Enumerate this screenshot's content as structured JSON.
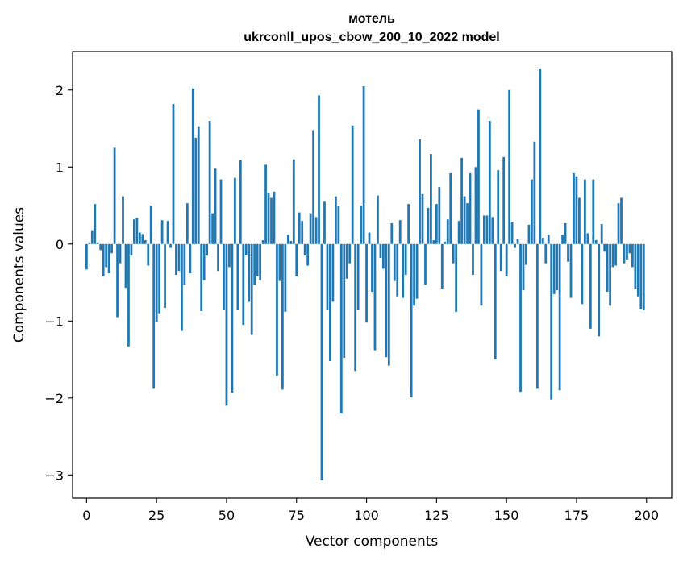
{
  "chart_data": {
    "type": "bar",
    "title": "мотель",
    "subtitle": "ukrconll_upos_cbow_200_10_2022 model",
    "xlabel": "Vector components",
    "ylabel": "Components values",
    "xlim": [
      -5,
      209
    ],
    "ylim": [
      -3.3,
      2.5
    ],
    "xticks": [
      0,
      25,
      50,
      75,
      100,
      125,
      150,
      175,
      200
    ],
    "xtick_labels": [
      "0",
      "25",
      "50",
      "75",
      "100",
      "125",
      "150",
      "175",
      "200"
    ],
    "yticks": [
      -3,
      -2,
      -1,
      0,
      1,
      2
    ],
    "ytick_labels": [
      "−3",
      "−2",
      "−1",
      "0",
      "1",
      "2"
    ],
    "grid": false,
    "color": "#1f77b4",
    "x": [
      0,
      1,
      2,
      3,
      4,
      5,
      6,
      7,
      8,
      9,
      10,
      11,
      12,
      13,
      14,
      15,
      16,
      17,
      18,
      19,
      20,
      21,
      22,
      23,
      24,
      25,
      26,
      27,
      28,
      29,
      30,
      31,
      32,
      33,
      34,
      35,
      36,
      37,
      38,
      39,
      40,
      41,
      42,
      43,
      44,
      45,
      46,
      47,
      48,
      49,
      50,
      51,
      52,
      53,
      54,
      55,
      56,
      57,
      58,
      59,
      60,
      61,
      62,
      63,
      64,
      65,
      66,
      67,
      68,
      69,
      70,
      71,
      72,
      73,
      74,
      75,
      76,
      77,
      78,
      79,
      80,
      81,
      82,
      83,
      84,
      85,
      86,
      87,
      88,
      89,
      90,
      91,
      92,
      93,
      94,
      95,
      96,
      97,
      98,
      99,
      100,
      101,
      102,
      103,
      104,
      105,
      106,
      107,
      108,
      109,
      110,
      111,
      112,
      113,
      114,
      115,
      116,
      117,
      118,
      119,
      120,
      121,
      122,
      123,
      124,
      125,
      126,
      127,
      128,
      129,
      130,
      131,
      132,
      133,
      134,
      135,
      136,
      137,
      138,
      139,
      140,
      141,
      142,
      143,
      144,
      145,
      146,
      147,
      148,
      149,
      150,
      151,
      152,
      153,
      154,
      155,
      156,
      157,
      158,
      159,
      160,
      161,
      162,
      163,
      164,
      165,
      166,
      167,
      168,
      169,
      170,
      171,
      172,
      173,
      174,
      175,
      176,
      177,
      178,
      179,
      180,
      181,
      182,
      183,
      184,
      185,
      186,
      187,
      188,
      189,
      190,
      191,
      192,
      193,
      194,
      195,
      196,
      197,
      198,
      199
    ],
    "values": [
      -0.33,
      0.02,
      0.18,
      0.52,
      0.02,
      -0.08,
      -0.42,
      -0.3,
      -0.38,
      -0.12,
      1.25,
      -0.95,
      -0.25,
      0.62,
      -0.57,
      -1.33,
      -0.15,
      0.32,
      0.34,
      0.15,
      0.13,
      0.05,
      -0.28,
      0.5,
      -1.88,
      -1.01,
      -0.9,
      0.31,
      -0.83,
      0.3,
      -0.05,
      1.82,
      -0.4,
      -0.35,
      -1.13,
      -0.53,
      0.53,
      -0.38,
      2.02,
      1.38,
      1.53,
      -0.87,
      -0.47,
      -0.15,
      1.6,
      0.4,
      0.98,
      -0.35,
      0.84,
      -0.85,
      -2.1,
      -0.3,
      -1.93,
      0.86,
      -0.85,
      1.09,
      -1.05,
      -0.15,
      -0.75,
      -1.18,
      -0.53,
      -0.42,
      -0.47,
      0.05,
      1.03,
      0.66,
      0.6,
      0.68,
      -1.71,
      -0.48,
      -1.89,
      -0.88,
      0.12,
      0.04,
      1.1,
      -0.42,
      0.41,
      0.3,
      -0.15,
      -0.28,
      0.4,
      1.48,
      0.35,
      1.93,
      -3.07,
      0.55,
      -0.85,
      -1.52,
      -0.75,
      0.62,
      0.5,
      -2.2,
      -1.48,
      -0.45,
      -0.25,
      1.54,
      -1.65,
      -0.85,
      0.5,
      2.05,
      -1.02,
      0.15,
      -0.62,
      -1.38,
      0.63,
      -0.18,
      -0.32,
      -1.47,
      -1.58,
      0.27,
      -0.48,
      -0.68,
      0.31,
      -0.7,
      -0.4,
      0.52,
      -1.99,
      -0.8,
      -0.71,
      1.36,
      0.65,
      -0.53,
      0.47,
      1.17,
      0.05,
      0.52,
      0.74,
      -0.58,
      0.03,
      0.32,
      0.92,
      -0.25,
      -0.88,
      0.3,
      1.12,
      0.62,
      0.53,
      0.92,
      -0.4,
      1.0,
      1.75,
      -0.8,
      0.37,
      0.37,
      1.6,
      0.35,
      -1.5,
      0.96,
      -0.35,
      1.13,
      -0.42,
      2.0,
      0.28,
      -0.05,
      0.07,
      -1.92,
      -0.6,
      -0.27,
      0.25,
      0.84,
      1.33,
      -1.88,
      2.28,
      0.08,
      -0.25,
      0.12,
      -2.02,
      -0.65,
      -0.6,
      -1.9,
      0.12,
      0.27,
      -0.23,
      -0.7,
      0.92,
      0.88,
      0.6,
      -0.78,
      0.84,
      0.14,
      -1.1,
      0.84,
      0.05,
      -1.2,
      0.26,
      -0.1,
      -0.62,
      -0.8,
      -0.3,
      -0.28,
      0.53,
      0.6,
      -0.25,
      -0.2,
      -0.12,
      -0.3,
      -0.58,
      -0.68,
      -0.84,
      -0.86
    ]
  }
}
